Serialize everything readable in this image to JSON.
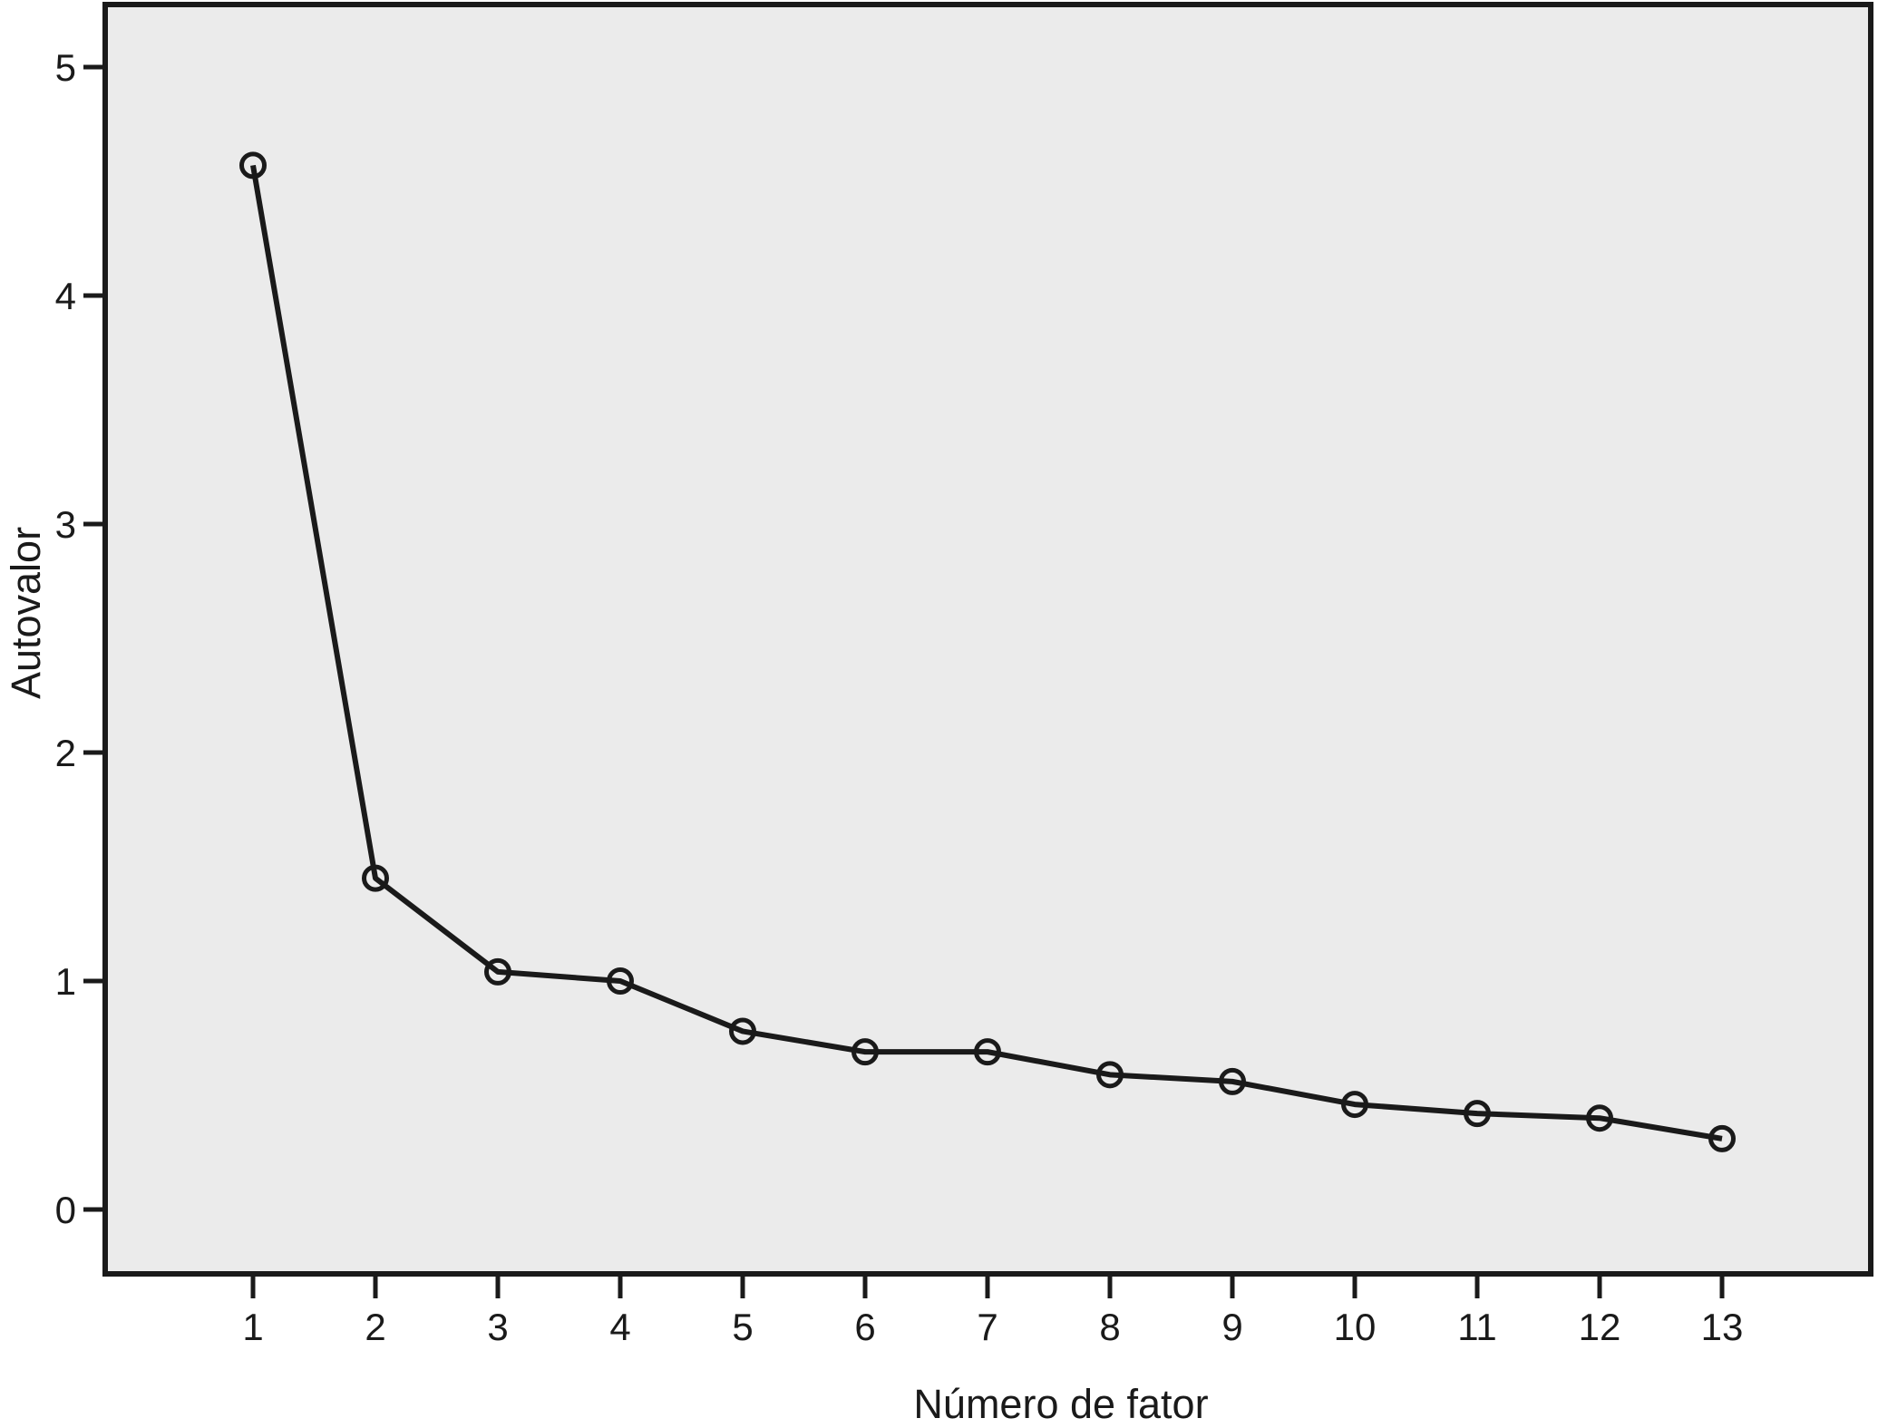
{
  "figure": {
    "y_axis_title": "Autovalor",
    "x_axis_title": "Número de fator"
  },
  "chart_data": {
    "type": "line",
    "title": "",
    "xlabel": "Número de fator",
    "ylabel": "Autovalor",
    "x": [
      1,
      2,
      3,
      4,
      5,
      6,
      7,
      8,
      9,
      10,
      11,
      12,
      13
    ],
    "values": [
      4.57,
      1.45,
      1.04,
      1.0,
      0.78,
      0.69,
      0.69,
      0.59,
      0.56,
      0.46,
      0.42,
      0.4,
      0.31
    ],
    "series": [
      {
        "name": "Autovalor",
        "values": [
          4.57,
          1.45,
          1.04,
          1.0,
          0.78,
          0.69,
          0.69,
          0.59,
          0.56,
          0.46,
          0.42,
          0.4,
          0.31
        ]
      }
    ],
    "yticks": [
      0,
      1,
      2,
      3,
      4,
      5
    ],
    "xticks": [
      "1",
      "2",
      "3",
      "4",
      "5",
      "6",
      "7",
      "8",
      "9",
      "10",
      "11",
      "12",
      "13"
    ],
    "ylim": [
      -0.28,
      5.28
    ],
    "xlim": [
      0,
      14
    ],
    "grid": "off",
    "legend": "none",
    "marker": "open-circle",
    "colors": {
      "plot_background": "#ebebeb",
      "line": "#1a1a1a",
      "axis": "#1a1a1a",
      "text": "#1a1a1a",
      "page_background": "#ffffff"
    }
  }
}
